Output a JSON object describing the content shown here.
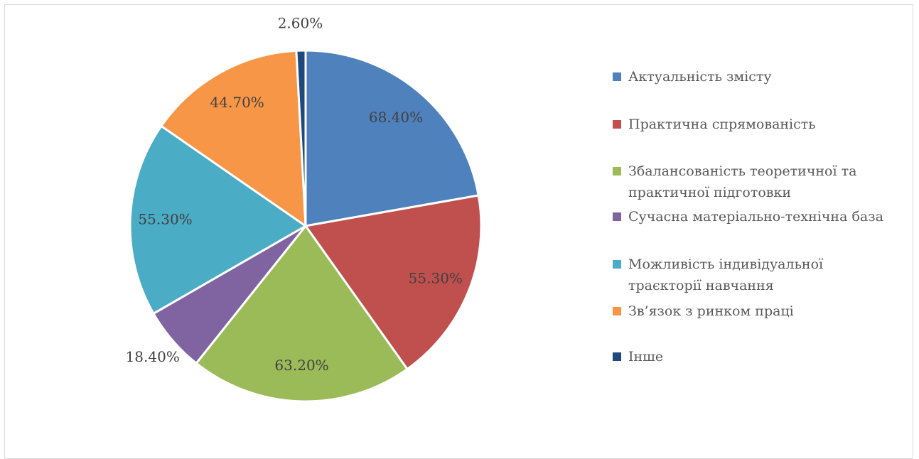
{
  "chart_data": {
    "type": "pie",
    "categories": [
      "Актуальність змісту",
      "Практична спрямованість",
      "Збалансованість теоретичної та практичної підготовки",
      "Сучасна матеріально-технічна база",
      "Можливість індивідуальної траєкторії навчання",
      "Зв’язок з ринком праці",
      "Інше"
    ],
    "values": [
      68.4,
      55.3,
      63.2,
      18.4,
      55.3,
      44.7,
      2.6
    ],
    "value_labels": [
      "68.40%",
      "55.30%",
      "63.20%",
      "18.40%",
      "55.30%",
      "44.70%",
      "2.60%"
    ],
    "colors": [
      "#4f81bd",
      "#c0504d",
      "#9bbb59",
      "#8064a2",
      "#4bacc6",
      "#f79646",
      "#1f497d"
    ],
    "legend": "right"
  }
}
